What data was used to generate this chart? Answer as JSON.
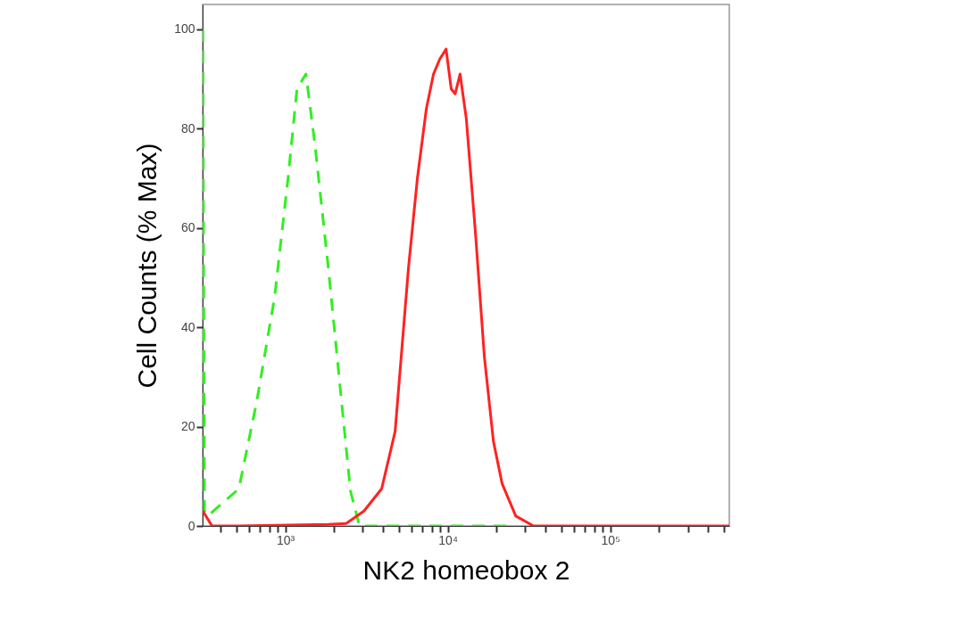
{
  "chart_data": {
    "type": "line",
    "xlabel": "NK2 homeobox 2",
    "ylabel": "Cell Counts (% Max)",
    "xlim": [
      310,
      540000
    ],
    "ylim": [
      0,
      105
    ],
    "log": "x",
    "grid": false,
    "marker": "none",
    "yticks": [
      0,
      20,
      40,
      60,
      80,
      100
    ],
    "xticks": [
      {
        "value": 400,
        "label": null
      },
      {
        "value": 500,
        "label": null
      },
      {
        "value": 600,
        "label": null
      },
      {
        "value": 700,
        "label": null
      },
      {
        "value": 800,
        "label": null
      },
      {
        "value": 900,
        "label": null
      },
      {
        "value": 1000,
        "label": "10³"
      },
      {
        "value": 2000,
        "label": null
      },
      {
        "value": 3000,
        "label": null
      },
      {
        "value": 4000,
        "label": null
      },
      {
        "value": 5000,
        "label": null
      },
      {
        "value": 6000,
        "label": null
      },
      {
        "value": 7000,
        "label": null
      },
      {
        "value": 8000,
        "label": null
      },
      {
        "value": 9000,
        "label": null
      },
      {
        "value": 10000,
        "label": "10⁴"
      },
      {
        "value": 20000,
        "label": null
      },
      {
        "value": 30000,
        "label": null
      },
      {
        "value": 40000,
        "label": null
      },
      {
        "value": 50000,
        "label": null
      },
      {
        "value": 60000,
        "label": null
      },
      {
        "value": 70000,
        "label": null
      },
      {
        "value": 80000,
        "label": null
      },
      {
        "value": 90000,
        "label": null
      },
      {
        "value": 100000,
        "label": "10⁵"
      },
      {
        "value": 200000,
        "label": null
      },
      {
        "value": 300000,
        "label": null
      },
      {
        "value": 400000,
        "label": null
      },
      {
        "value": 500000,
        "label": null
      }
    ],
    "series": [
      {
        "color": "#33ee22",
        "line_style": "dashed",
        "x": [
          311,
          318,
          333,
          518,
          667,
          859,
          1040,
          1180,
          1340,
          1520,
          1840,
          2220,
          2520,
          2860,
          23000
        ],
        "values": [
          100,
          3,
          2,
          7.5,
          25,
          46,
          70,
          88,
          91,
          77,
          52,
          25,
          7,
          0,
          0
        ]
      },
      {
        "color": "#ff2222",
        "line_style": "solid",
        "x": [
          311,
          354,
          518,
          1840,
          2370,
          3050,
          3920,
          4740,
          5730,
          6500,
          7380,
          8170,
          8930,
          9760,
          10500,
          11100,
          11900,
          13000,
          14800,
          16800,
          19100,
          21600,
          26200,
          33700,
          540000
        ],
        "values": [
          3,
          0,
          0,
          0.3,
          0.5,
          3,
          7.5,
          19,
          52,
          70,
          84,
          91,
          94,
          96,
          88,
          87,
          91,
          82,
          59,
          34,
          17,
          8.5,
          2,
          0,
          0
        ]
      }
    ]
  }
}
